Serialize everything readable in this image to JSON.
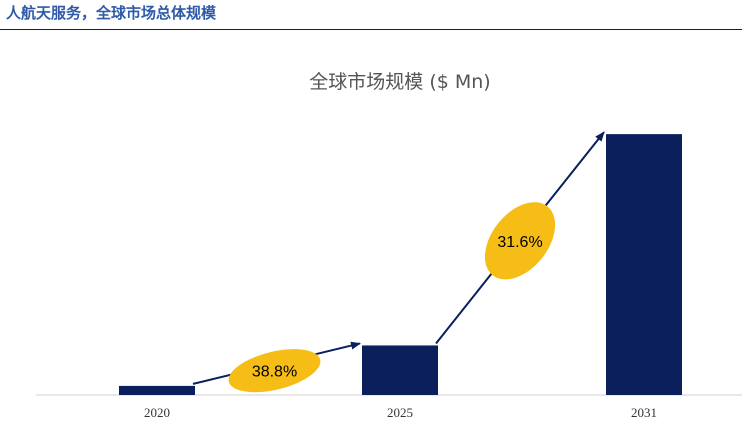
{
  "header": {
    "title": "人航天服务，全球市场总体规模"
  },
  "colors": {
    "bar": "#0b1f5c",
    "bubble": "#f6bd16",
    "header_text": "#2f5aa8",
    "arrow": "#0b1f5c"
  },
  "chart_data": {
    "type": "bar",
    "title": "全球市场规模 ($ Mn)",
    "categories": [
      "2020",
      "2025",
      "2031"
    ],
    "values": [
      9,
      49,
      258
    ],
    "ylim": [
      0,
      270
    ],
    "y_axis_visible": false,
    "grid": false,
    "growth_annotations": [
      {
        "from": "2020",
        "to": "2025",
        "label": "38.8%"
      },
      {
        "from": "2025",
        "to": "2031",
        "label": "31.6%"
      }
    ]
  }
}
